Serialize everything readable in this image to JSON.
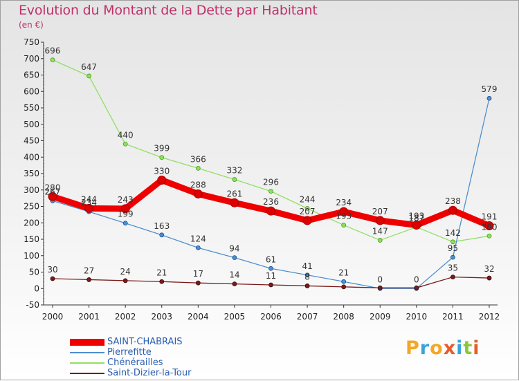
{
  "title": "Evolution du Montant de la Dette par Habitant",
  "subtitle": "(en €)",
  "logo": {
    "letters": [
      "P",
      "r",
      "o",
      "x",
      "i",
      "t",
      "i"
    ],
    "colors": [
      "#f5a623",
      "#3aa3d8",
      "#f5a623",
      "#e85b2a",
      "#3aa3d8",
      "#8cc63f",
      "#e85b2a"
    ]
  },
  "chart_data": {
    "type": "line",
    "title": "Evolution du Montant de la Dette par Habitant",
    "subtitle": "(en €)",
    "categories": [
      "2000",
      "2001",
      "2002",
      "2003",
      "2004",
      "2005",
      "2006",
      "2007",
      "2008",
      "2009",
      "2010",
      "2011",
      "2012"
    ],
    "ylim": [
      -50,
      750
    ],
    "yticks": [
      -50,
      0,
      50,
      100,
      150,
      200,
      250,
      300,
      350,
      400,
      450,
      500,
      550,
      600,
      650,
      700,
      750
    ],
    "grid": false,
    "legend_position": "bottom-left",
    "series": [
      {
        "name": "SAINT-CHABRAIS",
        "color": "#ee0000",
        "emphasis": true,
        "values": [
          280,
          244,
          243,
          330,
          288,
          261,
          236,
          207,
          234,
          207,
          193,
          238,
          191
        ]
      },
      {
        "name": "Pierrefitte",
        "color": "#4d8fce",
        "values": [
          267,
          234,
          199,
          163,
          124,
          94,
          61,
          41,
          21,
          0,
          0,
          95,
          579
        ]
      },
      {
        "name": "Chénérailles",
        "color": "#90e060",
        "values": [
          696,
          647,
          440,
          399,
          366,
          332,
          296,
          244,
          193,
          147,
          187,
          142,
          160
        ]
      },
      {
        "name": "Saint-Dizier-la-Tour",
        "color": "#7a1a1a",
        "values": [
          30,
          27,
          24,
          21,
          17,
          14,
          11,
          8,
          5,
          2,
          2,
          35,
          32
        ]
      }
    ],
    "labels": [
      {
        "series": 0,
        "values": [
          "280",
          "244",
          "243",
          "330",
          "288",
          "261",
          "236",
          "207",
          "234",
          "207",
          "193",
          "238",
          "191"
        ]
      },
      {
        "series": 1,
        "values": [
          "267",
          "234",
          "199",
          "163",
          "124",
          "94",
          "61",
          "41",
          "21",
          "0",
          "0",
          "95",
          "579"
        ]
      },
      {
        "series": 2,
        "values": [
          "696",
          "647",
          "440",
          "399",
          "366",
          "332",
          "296",
          "244",
          "193",
          "147",
          "187",
          "142",
          "160"
        ]
      },
      {
        "series": 3,
        "values": [
          "30",
          "27",
          "24",
          "21",
          "17",
          "14",
          "11",
          "8",
          "",
          "",
          "",
          "35",
          "32"
        ]
      }
    ]
  }
}
